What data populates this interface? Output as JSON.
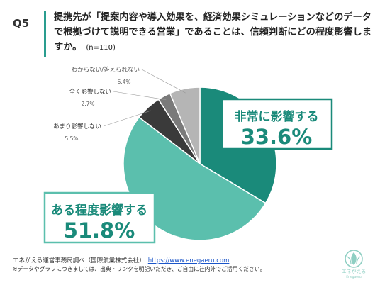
{
  "question": {
    "number": "Q5",
    "text": "提携先が「提案内容や導入効果を、経済効果シミュレーションなどのデータで根拠づけて説明できる営業」であることは、信頼判断にどの程度影響しますか。",
    "n": "(n=110)"
  },
  "chart_data": {
    "type": "pie",
    "title": "",
    "series": [
      {
        "label": "非常に影響する",
        "value": 33.6,
        "color": "#1a8a7a"
      },
      {
        "label": "ある程度影響する",
        "value": 51.8,
        "color": "#5bbfad"
      },
      {
        "label": "あまり影響しない",
        "value": 5.5,
        "color": "#3a3a3a"
      },
      {
        "label": "全く影響しない",
        "value": 2.7,
        "color": "#7a7a7a"
      },
      {
        "label": "わからない/答えられない",
        "value": 6.4,
        "color": "#b5b5b5"
      }
    ],
    "value_labels": [
      "33.6%",
      "51.8%",
      "5.5%",
      "2.7%",
      "6.4%"
    ]
  },
  "footer": {
    "source": "エネがえる運営事務局調べ（国際航業株式会社）",
    "url": "https://www.enegaeru.com",
    "note": "※データやグラフにつきましては、出典・リンクを明記いただき、ご自由に社内外でご活用ください。"
  },
  "logo": {
    "name": "エネがえる",
    "sub": "Enegaeru"
  }
}
